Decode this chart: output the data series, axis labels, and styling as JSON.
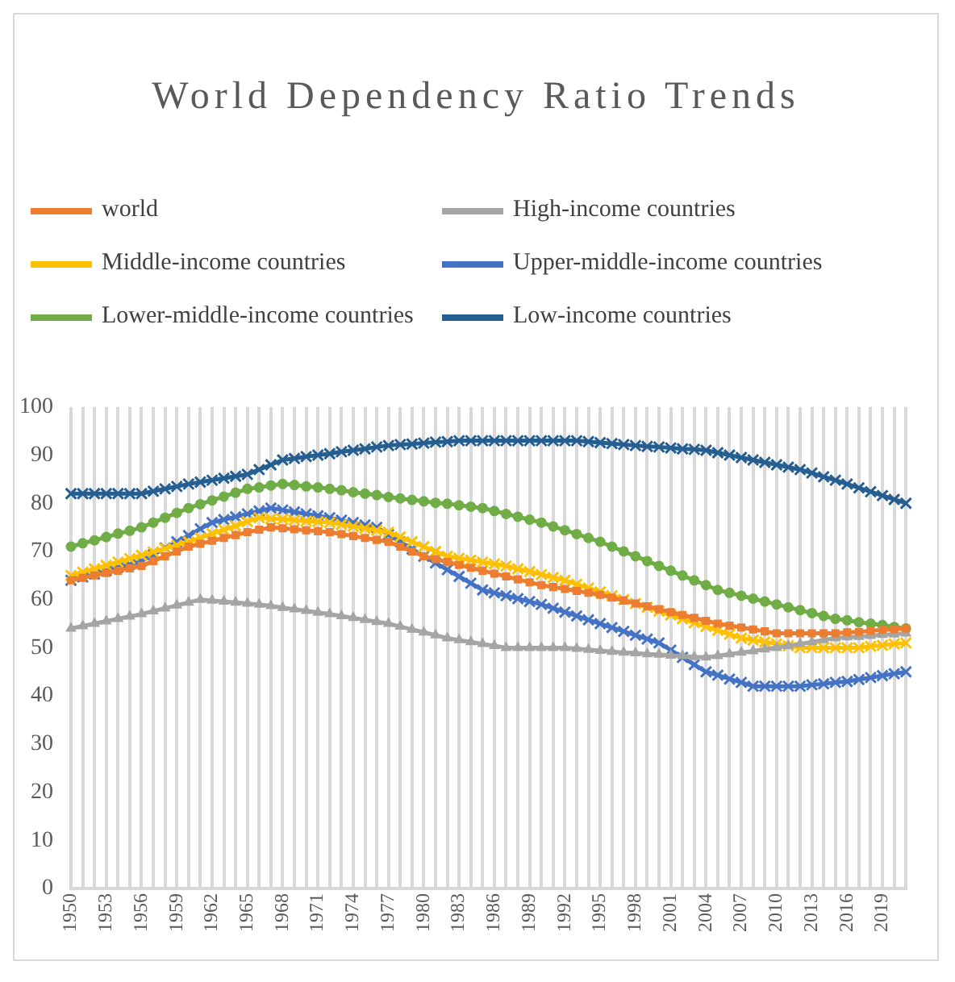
{
  "chart_data": {
    "type": "line",
    "title": "World Dependency Ratio Trends",
    "categories": [
      "1950",
      null,
      null,
      "1953",
      null,
      null,
      "1956",
      null,
      null,
      "1959",
      null,
      null,
      "1962",
      null,
      null,
      "1965",
      null,
      null,
      "1968",
      null,
      null,
      "1971",
      null,
      null,
      "1974",
      null,
      null,
      "1977",
      null,
      null,
      "1980",
      null,
      null,
      "1983",
      null,
      null,
      "1986",
      null,
      null,
      "1989",
      null,
      null,
      "1992",
      null,
      null,
      "1995",
      null,
      null,
      "1998",
      null,
      null,
      "2001",
      null,
      null,
      "2004",
      null,
      null,
      "2007",
      null,
      null,
      "2010",
      null,
      null,
      "2013",
      null,
      null,
      "2016",
      null,
      null,
      "2019",
      null,
      null
    ],
    "series": [
      {
        "name": "world",
        "color": "#ed7d31",
        "marker": "square",
        "values": [
          64,
          64.5,
          65,
          65.5,
          66,
          66.5,
          67,
          68,
          69,
          70,
          71,
          71.6,
          72.2,
          72.8,
          73.4,
          74,
          74.5,
          75,
          74.8,
          74.6,
          74.4,
          74.2,
          74,
          73.6,
          73.2,
          72.8,
          72.4,
          72,
          71,
          70,
          69,
          68.4,
          67.8,
          67.2,
          66.6,
          66,
          65.4,
          64.8,
          64.2,
          63.6,
          63,
          62.6,
          62.2,
          61.8,
          61.4,
          61,
          60.4,
          59.8,
          59.2,
          58.6,
          58,
          57.4,
          56.8,
          56.2,
          55.6,
          55,
          54.6,
          54.2,
          53.8,
          53.4,
          53,
          53,
          53,
          53,
          53,
          53,
          53.2,
          53.3,
          53.5,
          53.7,
          53.8,
          54
        ]
      },
      {
        "name": "High-income countries",
        "color": "#a5a5a5",
        "marker": "triangle",
        "values": [
          54,
          54.5,
          55,
          55.5,
          56,
          56.5,
          57,
          57.6,
          58.2,
          58.8,
          59.4,
          60,
          59.8,
          59.6,
          59.4,
          59.2,
          59,
          58.7,
          58.3,
          58,
          57.7,
          57.3,
          57,
          56.6,
          56.2,
          55.8,
          55.4,
          55,
          54.4,
          53.8,
          53.2,
          52.6,
          52,
          51.6,
          51.2,
          50.8,
          50.4,
          50,
          50,
          50,
          50,
          50,
          50,
          49.8,
          49.6,
          49.4,
          49.2,
          49,
          48.9,
          48.7,
          48.6,
          48.4,
          48.3,
          48.1,
          48,
          48.3,
          48.7,
          49,
          49.3,
          49.7,
          50,
          50.4,
          50.8,
          51.2,
          51.6,
          52,
          52.2,
          52.3,
          52.5,
          52.7,
          52.8,
          53
        ]
      },
      {
        "name": "Middle-income countries",
        "color": "#ffc000",
        "marker": "cross",
        "values": [
          65,
          65.7,
          66.4,
          67.1,
          67.8,
          68.5,
          69.2,
          69.9,
          70.6,
          71.3,
          72,
          72.8,
          73.7,
          74.5,
          75.3,
          76.2,
          77,
          76.8,
          76.7,
          76.5,
          76.3,
          76.2,
          76,
          75.6,
          75.2,
          74.8,
          74.4,
          74,
          73,
          72,
          71,
          70,
          69,
          68.6,
          68.2,
          67.8,
          67.4,
          67,
          66.4,
          65.8,
          65.2,
          64.6,
          64,
          63.2,
          62.4,
          61.6,
          60.8,
          60,
          59.2,
          58.4,
          57.6,
          56.8,
          56,
          55.2,
          54.4,
          53.6,
          52.8,
          52,
          51.6,
          51.2,
          50.8,
          50.4,
          50,
          50,
          50,
          50,
          50,
          50,
          50.3,
          50.5,
          50.8,
          51
        ]
      },
      {
        "name": "Upper-middle-income countries",
        "color": "#4472c4",
        "marker": "cross",
        "values": [
          64,
          64.7,
          65.3,
          66,
          66.7,
          67.3,
          68,
          69.3,
          70.7,
          72,
          73.3,
          74.7,
          76,
          76.6,
          77.2,
          77.8,
          78.4,
          79,
          78.6,
          78.2,
          77.8,
          77.4,
          77,
          76.5,
          76,
          75.5,
          75,
          73.5,
          72,
          70.5,
          69,
          67.6,
          66.2,
          64.8,
          63.4,
          62,
          61.4,
          60.8,
          60.2,
          59.6,
          59,
          58.2,
          57.4,
          56.6,
          55.8,
          55,
          54.2,
          53.4,
          52.6,
          51.8,
          51,
          49.5,
          48,
          46.5,
          45,
          44.3,
          43.5,
          42.8,
          42,
          42,
          42,
          42,
          42,
          42.3,
          42.5,
          42.8,
          43,
          43.4,
          43.8,
          44.2,
          44.6,
          45
        ]
      },
      {
        "name": "Lower-middle-income countries",
        "color": "#70ad47",
        "marker": "circle",
        "values": [
          71,
          71.7,
          72.3,
          73,
          73.7,
          74.3,
          75,
          76,
          77,
          78,
          79,
          79.8,
          80.6,
          81.4,
          82.2,
          83,
          83.3,
          83.7,
          84,
          83.8,
          83.5,
          83.3,
          83,
          82.7,
          82.3,
          82,
          81.7,
          81.3,
          81,
          80.7,
          80.4,
          80.1,
          79.9,
          79.6,
          79.3,
          79,
          78.4,
          77.8,
          77.2,
          76.6,
          76,
          75.2,
          74.4,
          73.6,
          72.8,
          72,
          71,
          70,
          69,
          68,
          67,
          66,
          65,
          64,
          63,
          62,
          61.4,
          60.8,
          60.2,
          59.6,
          59,
          58.4,
          57.8,
          57.2,
          56.6,
          56,
          55.7,
          55.3,
          55,
          54.7,
          54.3,
          54
        ]
      },
      {
        "name": "Low-income countries",
        "color": "#255e91",
        "marker": "cross",
        "values": [
          82,
          82,
          82,
          82,
          82,
          82,
          82,
          82.5,
          83,
          83.5,
          84,
          84.4,
          84.8,
          85.2,
          85.6,
          86,
          87,
          88,
          89,
          89.3,
          89.7,
          90,
          90.3,
          90.7,
          91,
          91.3,
          91.7,
          92,
          92.2,
          92.3,
          92.5,
          92.7,
          92.8,
          93,
          93,
          93,
          93,
          93,
          93,
          93,
          93,
          93,
          93,
          93,
          92.8,
          92.6,
          92.4,
          92.2,
          92,
          91.8,
          91.7,
          91.5,
          91.3,
          91.2,
          91,
          90.5,
          90,
          89.5,
          89,
          88.5,
          88,
          87.5,
          87,
          86.3,
          85.5,
          84.8,
          84,
          83.2,
          82.4,
          81.6,
          80.8,
          80
        ]
      }
    ],
    "ylim": [
      0,
      100
    ],
    "yticks": [
      0,
      10,
      20,
      30,
      40,
      50,
      60,
      70,
      80,
      90,
      100
    ],
    "grid": "x",
    "legend": "top"
  }
}
